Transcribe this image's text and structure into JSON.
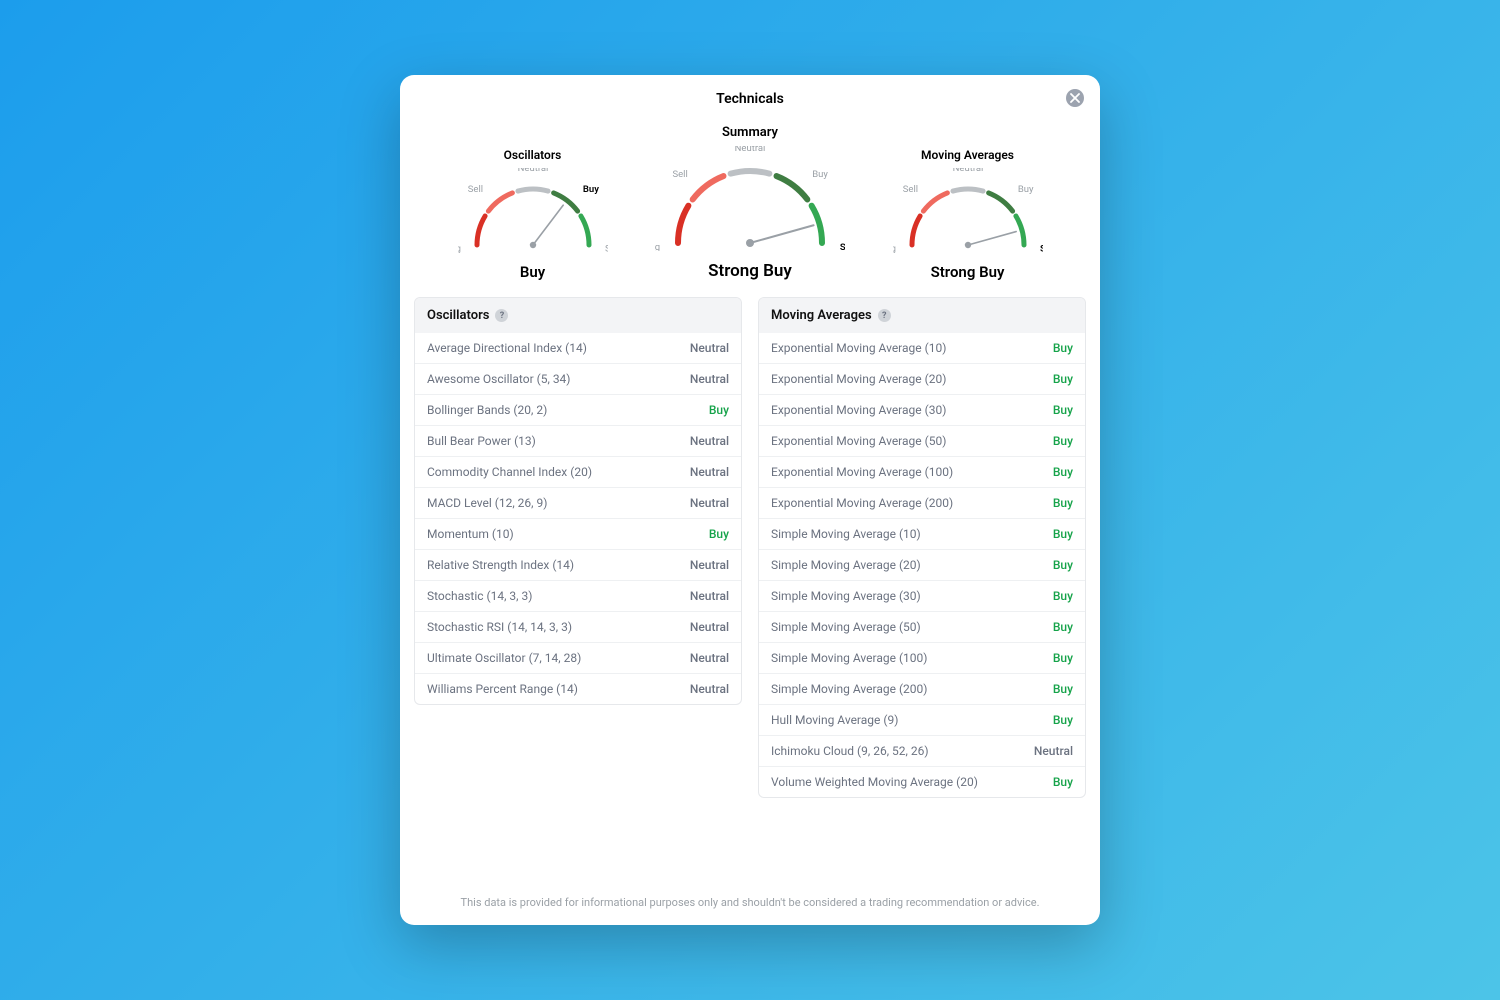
{
  "panel": {
    "title": "Technicals",
    "disclaimer": "This data is provided for informational purposes only and shouldn't be considered a trading recommendation or advice."
  },
  "gauge_style": {
    "arc_colors": [
      "#d93025",
      "#ef6a5f",
      "#bcc0c4",
      "#3f7d42",
      "#34a853"
    ],
    "needle_color": "#9aa0a6",
    "background": "#ffffff"
  },
  "gauge_labels": [
    "Strong Sell",
    "Sell",
    "Neutral",
    "Buy",
    "Strong Buy"
  ],
  "gauges": [
    {
      "title": "Oscillators",
      "size": "small",
      "verdict": "Buy",
      "verdict_index": 3
    },
    {
      "title": "Summary",
      "size": "big",
      "verdict": "Strong Buy",
      "verdict_index": 4
    },
    {
      "title": "Moving Averages",
      "size": "small",
      "verdict": "Strong Buy",
      "verdict_index": 4
    }
  ],
  "oscillators": {
    "title": "Oscillators",
    "rows": [
      {
        "name": "Average Directional Index (14)",
        "verdict": "Neutral"
      },
      {
        "name": "Awesome Oscillator (5, 34)",
        "verdict": "Neutral"
      },
      {
        "name": "Bollinger Bands (20, 2)",
        "verdict": "Buy"
      },
      {
        "name": "Bull Bear Power (13)",
        "verdict": "Neutral"
      },
      {
        "name": "Commodity Channel Index (20)",
        "verdict": "Neutral"
      },
      {
        "name": "MACD Level (12, 26, 9)",
        "verdict": "Neutral"
      },
      {
        "name": "Momentum (10)",
        "verdict": "Buy"
      },
      {
        "name": "Relative Strength Index (14)",
        "verdict": "Neutral"
      },
      {
        "name": "Stochastic (14, 3, 3)",
        "verdict": "Neutral"
      },
      {
        "name": "Stochastic RSI (14, 14, 3, 3)",
        "verdict": "Neutral"
      },
      {
        "name": "Ultimate Oscillator (7, 14, 28)",
        "verdict": "Neutral"
      },
      {
        "name": "Williams Percent Range (14)",
        "verdict": "Neutral"
      }
    ]
  },
  "moving_averages": {
    "title": "Moving Averages",
    "rows": [
      {
        "name": "Exponential Moving Average (10)",
        "verdict": "Buy"
      },
      {
        "name": "Exponential Moving Average (20)",
        "verdict": "Buy"
      },
      {
        "name": "Exponential Moving Average (30)",
        "verdict": "Buy"
      },
      {
        "name": "Exponential Moving Average (50)",
        "verdict": "Buy"
      },
      {
        "name": "Exponential Moving Average (100)",
        "verdict": "Buy"
      },
      {
        "name": "Exponential Moving Average (200)",
        "verdict": "Buy"
      },
      {
        "name": "Simple Moving Average (10)",
        "verdict": "Buy"
      },
      {
        "name": "Simple Moving Average (20)",
        "verdict": "Buy"
      },
      {
        "name": "Simple Moving Average (30)",
        "verdict": "Buy"
      },
      {
        "name": "Simple Moving Average (50)",
        "verdict": "Buy"
      },
      {
        "name": "Simple Moving Average (100)",
        "verdict": "Buy"
      },
      {
        "name": "Simple Moving Average (200)",
        "verdict": "Buy"
      },
      {
        "name": "Hull Moving Average (9)",
        "verdict": "Buy"
      },
      {
        "name": "Ichimoku Cloud (9, 26, 52, 26)",
        "verdict": "Neutral"
      },
      {
        "name": "Volume Weighted Moving Average (20)",
        "verdict": "Buy"
      }
    ]
  }
}
